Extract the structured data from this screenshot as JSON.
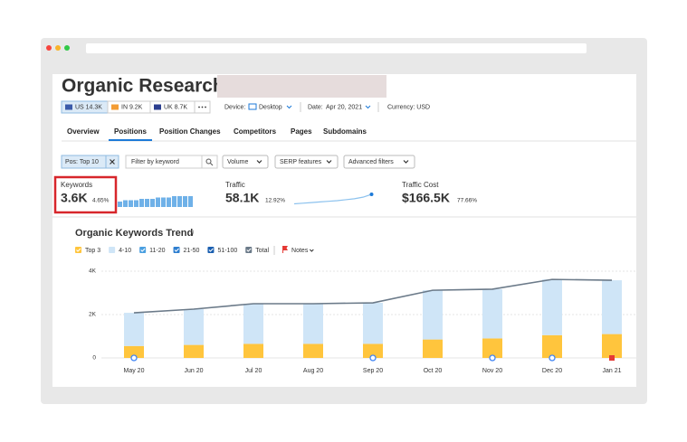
{
  "header": {
    "title": "Organic Research:"
  },
  "databases": [
    "US 14.3K",
    "IN 9.2K",
    "UK 8.7K"
  ],
  "settings": {
    "device_label": "Device:",
    "device": "Desktop",
    "date_label": "Date:",
    "date": "Apr 20, 2021",
    "currency": "Currency: USD"
  },
  "tabs": [
    "Overview",
    "Positions",
    "Position Changes",
    "Competitors",
    "Pages",
    "Subdomains"
  ],
  "filters": {
    "position": "Pos: Top 10",
    "search_placeholder": "Filter by keyword",
    "dropdowns": [
      "Volume",
      "SERP features",
      "Advanced filters"
    ]
  },
  "metrics": [
    {
      "label": "Keywords",
      "value": "3.6K",
      "change": "4.65%"
    },
    {
      "label": "Traffic",
      "value": "58.1K",
      "change": "12.92%"
    },
    {
      "label": "Traffic Cost",
      "value": "$166.5K",
      "change": "77.66%"
    }
  ],
  "keywords_sparkline": [
    4,
    5,
    5,
    5,
    6,
    6,
    6,
    7,
    7,
    7,
    8,
    8,
    8,
    8
  ],
  "traffic_sparkline": [
    1,
    1.2,
    1.4,
    1.6,
    1.8,
    2,
    2.3,
    2.6,
    3.1,
    4
  ],
  "chart_data": {
    "type": "bar",
    "title": "Organic Keywords Trend",
    "categories": [
      "May 20",
      "Jun 20",
      "Jul 20",
      "Aug 20",
      "Sep 20",
      "Oct 20",
      "Nov 20",
      "Dec 20",
      "Jan 21"
    ],
    "series": [
      {
        "name": "Top 3",
        "color": "#ffc53d",
        "values": [
          550,
          600,
          650,
          650,
          650,
          850,
          900,
          1050,
          1100
        ]
      },
      {
        "name": "4-10",
        "color": "#cfe5f7",
        "values": [
          1530,
          1650,
          1850,
          1850,
          1890,
          2270,
          2270,
          2570,
          2480
        ]
      },
      {
        "name": "Total",
        "type": "line",
        "color": "#6b7a89",
        "values": [
          2080,
          2250,
          2500,
          2500,
          2540,
          3120,
          3170,
          3620,
          3580
        ]
      }
    ],
    "other_legend": [
      {
        "name": "11-20",
        "color": "#4a9fe0"
      },
      {
        "name": "21-50",
        "color": "#2f7fd0"
      },
      {
        "name": "51-100",
        "color": "#1b5fb0"
      }
    ],
    "notes_label": "Notes",
    "notes_color": "#e53935",
    "ylim": [
      0,
      4000
    ],
    "yticks": [
      0,
      {
        "value": 2000,
        "label": "2K"
      },
      {
        "value": 4000,
        "label": "4K"
      }
    ],
    "grid": true
  }
}
